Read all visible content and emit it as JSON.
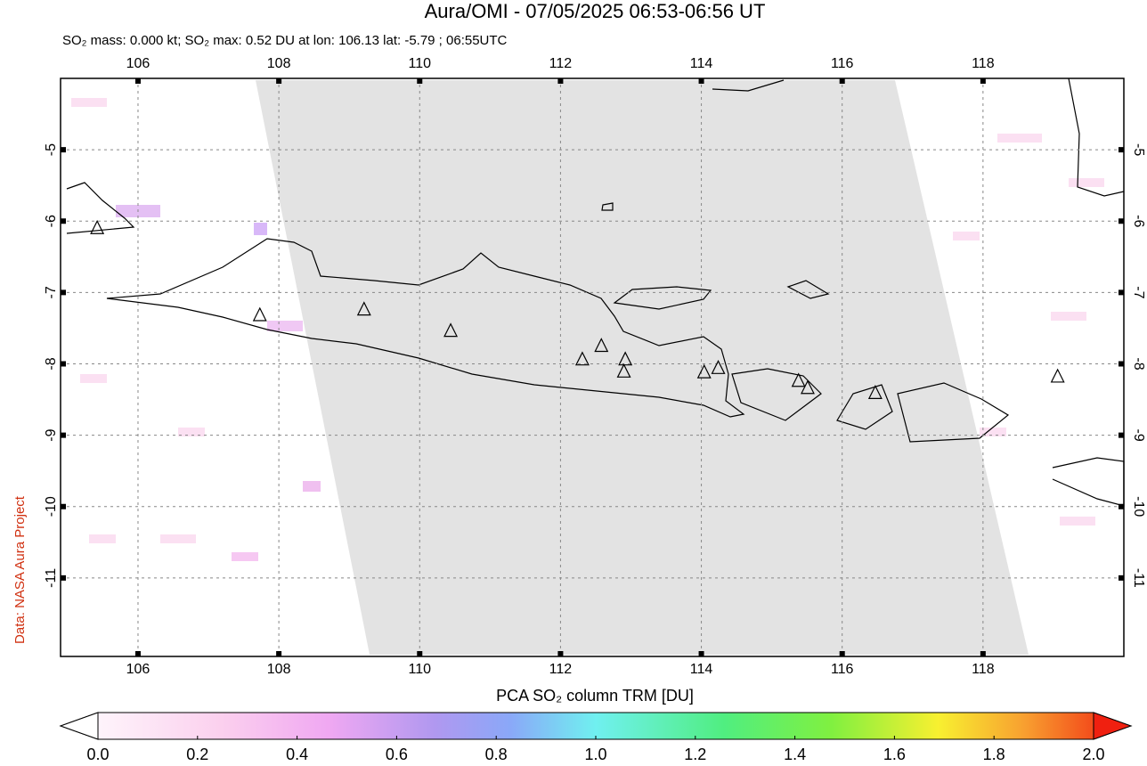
{
  "map": {
    "title": "Aura/OMI - 07/05/2025 06:53-06:56 UT",
    "subtitle": "SO₂ mass: 0.000 kt; SO₂ max: 0.52 DU at lon: 106.13 lat: -5.79 ; 06:55UTC",
    "side_label": "Data: NASA Aura Project",
    "lonlim": [
      104.9,
      120.0
    ],
    "latlim": [
      -4.0,
      -12.1
    ],
    "lonticks": [
      106,
      108,
      110,
      112,
      114,
      116,
      118
    ],
    "latticks": [
      -5,
      -6,
      -7,
      -8,
      -9,
      -10,
      -11
    ],
    "volcanoes": [
      [
        105.42,
        -6.1
      ],
      [
        107.73,
        -7.32
      ],
      [
        109.21,
        -7.24
      ],
      [
        110.44,
        -7.54
      ],
      [
        112.31,
        -7.94
      ],
      [
        112.58,
        -7.75
      ],
      [
        112.92,
        -7.94
      ],
      [
        112.9,
        -8.11
      ],
      [
        114.04,
        -8.12
      ],
      [
        114.24,
        -8.06
      ],
      [
        115.38,
        -8.24
      ],
      [
        115.51,
        -8.34
      ],
      [
        116.47,
        -8.41
      ],
      [
        119.06,
        -8.18
      ]
    ],
    "colorbar": {
      "label": "PCA SO₂ column TRM [DU]",
      "lim": [
        0,
        2.0
      ],
      "ticks": [
        {
          "value": 0,
          "label": "0.0"
        },
        0.2,
        0.4,
        0.6,
        0.8,
        {
          "value": 1,
          "label": "1.0"
        },
        1.2,
        1.4,
        1.6,
        1.8,
        {
          "value": 2,
          "label": "2.0"
        }
      ]
    }
  }
}
